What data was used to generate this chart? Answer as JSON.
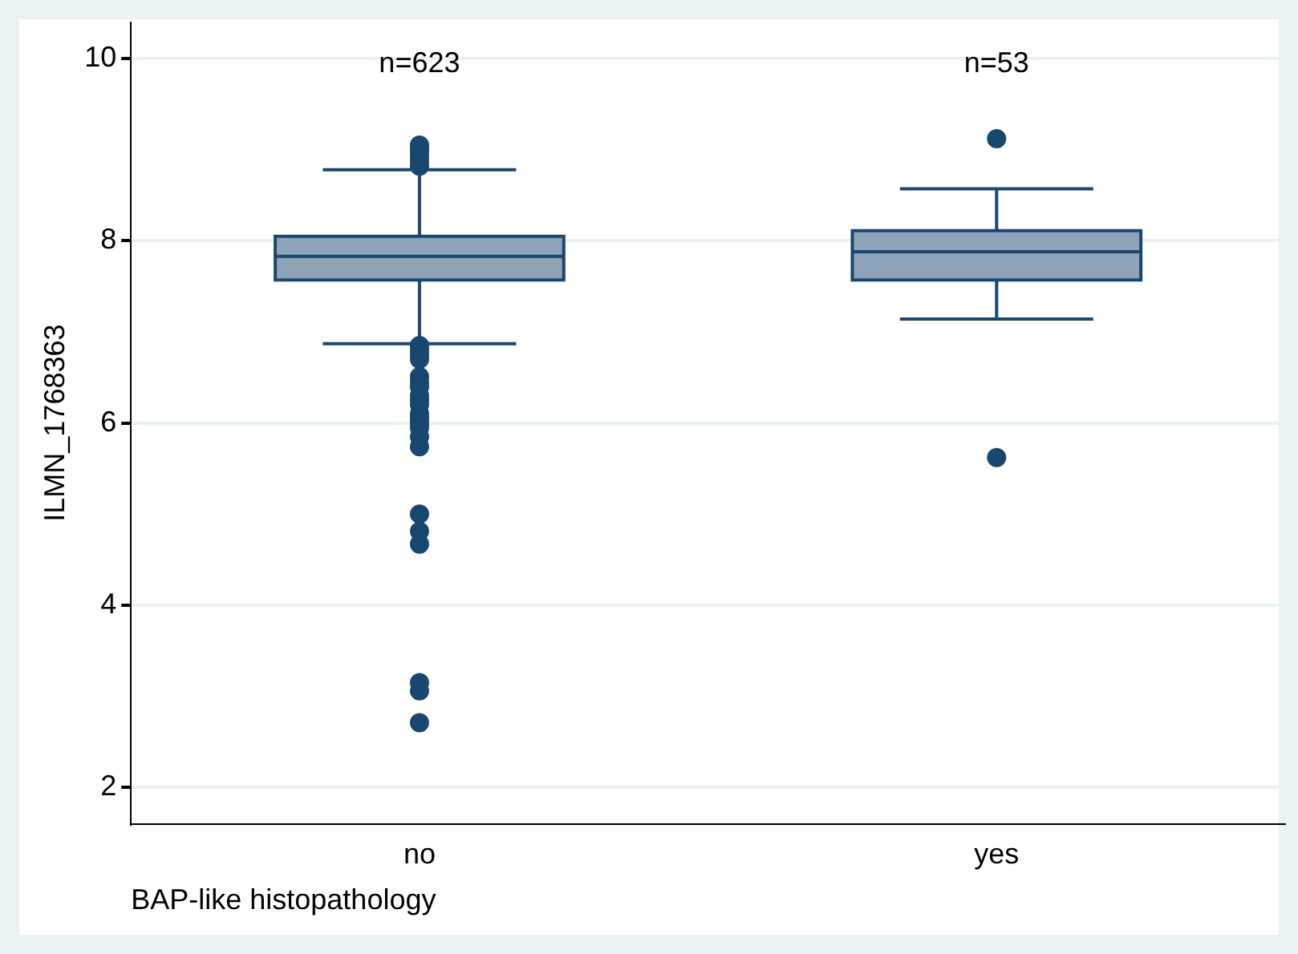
{
  "chart_data": {
    "type": "box",
    "xlabel": "BAP-like histopathology",
    "ylabel": "ILMN_1768363",
    "categories": [
      "no",
      "yes"
    ],
    "color": "#8ea4b8",
    "boxes": [
      {
        "low": 6.87,
        "q1": 7.57,
        "median": 7.83,
        "q3": 8.05,
        "high": 8.78,
        "outliers": [
          8.82,
          8.87,
          8.92,
          8.97,
          9.02,
          9.05,
          6.85,
          6.8,
          6.75,
          6.7,
          6.51,
          6.45,
          6.4,
          6.3,
          6.25,
          6.2,
          6.1,
          6.05,
          6.0,
          5.95,
          5.85,
          5.74,
          5.0,
          4.81,
          4.67,
          3.15,
          3.06,
          2.71
        ]
      },
      {
        "low": 7.14,
        "q1": 7.57,
        "median": 7.88,
        "q3": 8.11,
        "high": 8.57,
        "outliers": [
          9.12,
          5.62
        ]
      }
    ],
    "ylim": [
      1.6,
      10.4
    ],
    "yticks": [
      2,
      4,
      6,
      8,
      10
    ],
    "grid": "y",
    "annotations": [
      "n=623",
      "n=53"
    ]
  }
}
